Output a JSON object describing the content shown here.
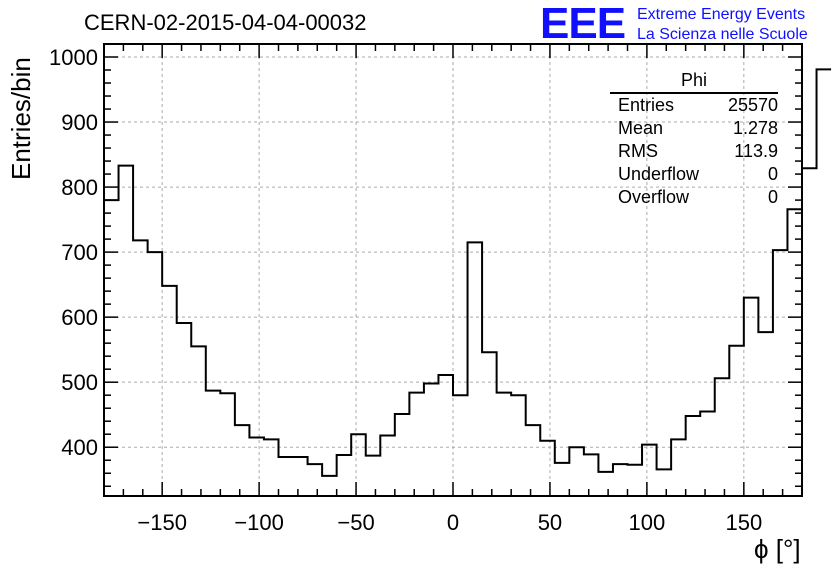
{
  "title": "CERN-02-2015-04-04-00032",
  "logo": {
    "mark": "EEE",
    "line1": "Extreme Energy Events",
    "line2": "La Scienza nelle Scuole",
    "color": "#1010ff"
  },
  "stats": {
    "name": "Phi",
    "rows": [
      {
        "label": "Entries",
        "value": "25570"
      },
      {
        "label": "Mean",
        "value": "1.278"
      },
      {
        "label": "RMS",
        "value": "113.9"
      },
      {
        "label": "Underflow",
        "value": "0"
      },
      {
        "label": "Overflow",
        "value": "0"
      }
    ]
  },
  "chart_data": {
    "type": "histogram",
    "xlabel": "ϕ [°]",
    "ylabel": "Entries/bin",
    "xlim": [
      -180,
      180
    ],
    "ylim": [
      325,
      1020
    ],
    "bin_width": 7.5,
    "x_ticks": [
      -150,
      -100,
      -50,
      0,
      50,
      100,
      150
    ],
    "x_tick_labels": [
      "−150",
      "−100",
      "−50",
      "0",
      "50",
      "100",
      "150"
    ],
    "y_ticks": [
      400,
      500,
      600,
      700,
      800,
      900,
      1000
    ],
    "y_tick_labels": [
      "400",
      "500",
      "600",
      "700",
      "800",
      "900",
      "1000"
    ],
    "grid": true,
    "line_color": "#000000",
    "values": [
      780,
      833,
      718,
      700,
      648,
      591,
      555,
      487,
      483,
      434,
      415,
      412,
      385,
      385,
      374,
      356,
      388,
      420,
      387,
      418,
      451,
      484,
      498,
      511,
      480,
      715,
      546,
      484,
      480,
      434,
      410,
      376,
      400,
      389,
      362,
      374,
      373,
      404,
      366,
      412,
      448,
      455,
      506,
      556,
      630,
      577,
      703,
      766,
      829,
      981
    ]
  }
}
